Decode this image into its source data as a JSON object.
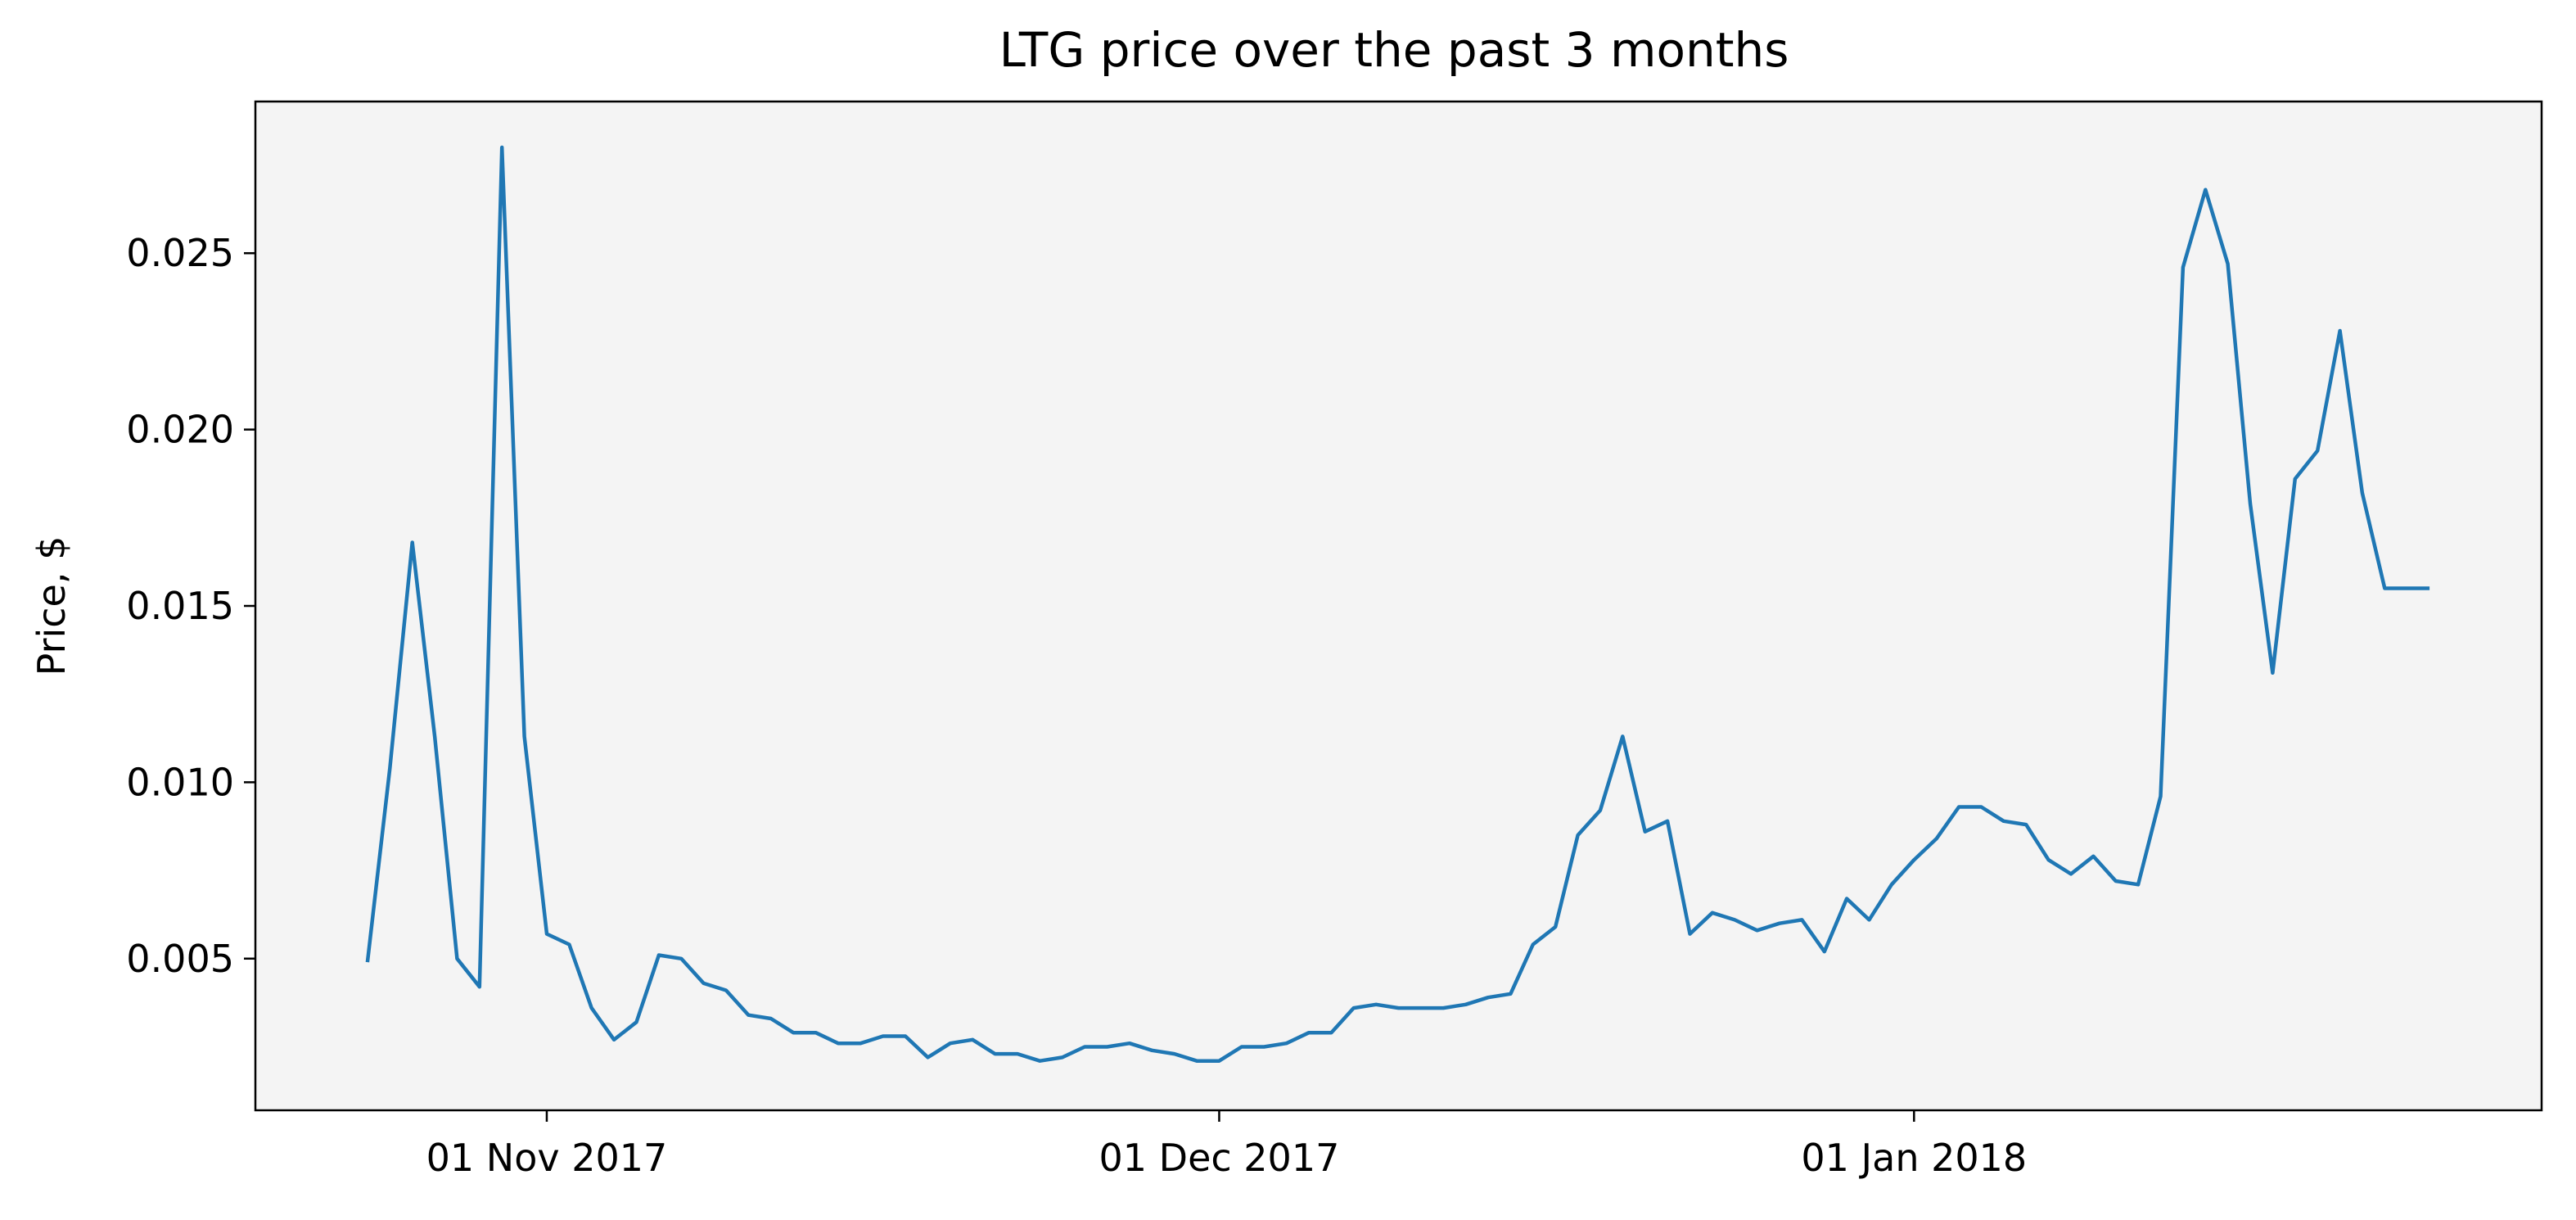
{
  "chart_data": {
    "type": "line",
    "title": "LTG price over the past 3 months",
    "xlabel": "",
    "ylabel": "Price, $",
    "grid": false,
    "legend": "none",
    "colors": {
      "line": "#1f77b4",
      "plot_background": "#f4f4f4"
    },
    "x_ticks": [
      "01 Nov 2017",
      "01 Dec 2017",
      "01 Jan 2018"
    ],
    "y_ticks": [
      "0.005",
      "0.010",
      "0.015",
      "0.020",
      "0.025"
    ],
    "xlim": [
      "2017-10-19",
      "2018-01-29"
    ],
    "ylim": [
      0.0007,
      0.0293
    ],
    "series": [
      {
        "x": [
          "2017-10-24",
          "2017-10-25",
          "2017-10-26",
          "2017-10-27",
          "2017-10-28",
          "2017-10-29",
          "2017-10-30",
          "2017-10-31",
          "2017-11-01",
          "2017-11-02",
          "2017-11-03",
          "2017-11-04",
          "2017-11-05",
          "2017-11-06",
          "2017-11-07",
          "2017-11-08",
          "2017-11-09",
          "2017-11-10",
          "2017-11-11",
          "2017-11-12",
          "2017-11-13",
          "2017-11-14",
          "2017-11-15",
          "2017-11-16",
          "2017-11-17",
          "2017-11-18",
          "2017-11-19",
          "2017-11-20",
          "2017-11-21",
          "2017-11-22",
          "2017-11-23",
          "2017-11-24",
          "2017-11-25",
          "2017-11-26",
          "2017-11-27",
          "2017-11-28",
          "2017-11-29",
          "2017-11-30",
          "2017-12-01",
          "2017-12-02",
          "2017-12-03",
          "2017-12-04",
          "2017-12-05",
          "2017-12-06",
          "2017-12-07",
          "2017-12-08",
          "2017-12-09",
          "2017-12-10",
          "2017-12-11",
          "2017-12-12",
          "2017-12-13",
          "2017-12-14",
          "2017-12-15",
          "2017-12-16",
          "2017-12-17",
          "2017-12-18",
          "2017-12-19",
          "2017-12-20",
          "2017-12-21",
          "2017-12-22",
          "2017-12-23",
          "2017-12-24",
          "2017-12-25",
          "2017-12-26",
          "2017-12-27",
          "2017-12-28",
          "2017-12-29",
          "2017-12-30",
          "2017-12-31",
          "2018-01-01",
          "2018-01-02",
          "2018-01-03",
          "2018-01-04",
          "2018-01-05",
          "2018-01-06",
          "2018-01-07",
          "2018-01-08",
          "2018-01-09",
          "2018-01-10",
          "2018-01-11",
          "2018-01-12",
          "2018-01-13",
          "2018-01-14",
          "2018-01-15",
          "2018-01-16",
          "2018-01-17",
          "2018-01-18",
          "2018-01-19",
          "2018-01-20",
          "2018-01-21",
          "2018-01-22",
          "2018-01-23",
          "2018-01-24"
        ],
        "values": [
          0.0049,
          0.0104,
          0.0168,
          0.0113,
          0.005,
          0.0042,
          0.028,
          0.0113,
          0.0057,
          0.0054,
          0.0036,
          0.0027,
          0.0032,
          0.0051,
          0.005,
          0.0043,
          0.0041,
          0.0034,
          0.0033,
          0.0029,
          0.0029,
          0.0026,
          0.0026,
          0.0028,
          0.0028,
          0.0022,
          0.0026,
          0.0027,
          0.0023,
          0.0023,
          0.0021,
          0.0022,
          0.0025,
          0.0025,
          0.0026,
          0.0024,
          0.0023,
          0.0021,
          0.0021,
          0.0025,
          0.0025,
          0.0026,
          0.0029,
          0.0029,
          0.0036,
          0.0037,
          0.0036,
          0.0036,
          0.0036,
          0.0037,
          0.0039,
          0.004,
          0.0054,
          0.0059,
          0.0085,
          0.0092,
          0.0113,
          0.0086,
          0.0089,
          0.0057,
          0.0063,
          0.0061,
          0.0058,
          0.006,
          0.0061,
          0.0052,
          0.0067,
          0.0061,
          0.0071,
          0.0078,
          0.0084,
          0.0093,
          0.0093,
          0.0089,
          0.0088,
          0.0078,
          0.0074,
          0.0079,
          0.0072,
          0.0071,
          0.0096,
          0.0246,
          0.0268,
          0.0247,
          0.0179,
          0.0131,
          0.0186,
          0.0194,
          0.0228,
          0.0182,
          0.0155,
          0.0155,
          0.0155
        ]
      }
    ]
  }
}
